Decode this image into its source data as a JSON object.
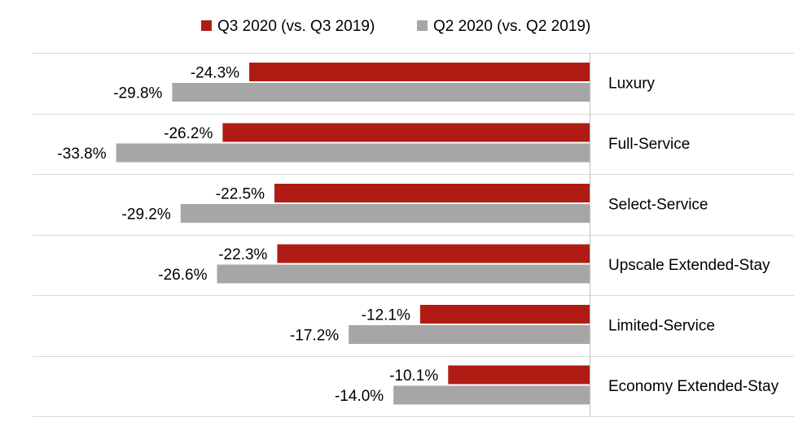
{
  "chart_data": {
    "type": "bar",
    "orientation": "horizontal",
    "categories": [
      "Luxury",
      "Full-Service",
      "Select-Service",
      "Upscale Extended-Stay",
      "Limited-Service",
      "Economy Extended-Stay"
    ],
    "series": [
      {
        "name": "Q3 2020 (vs. Q3 2019)",
        "color": "#b01c14",
        "values": [
          -24.3,
          -26.2,
          -22.5,
          -22.3,
          -12.1,
          -10.1
        ],
        "labels": [
          "-24.3%",
          "-26.2%",
          "-22.5%",
          "-22.3%",
          "-12.1%",
          "-10.1%"
        ]
      },
      {
        "name": "Q2 2020 (vs. Q2 2019)",
        "color": "#a6a6a6",
        "values": [
          -29.8,
          -33.8,
          -29.2,
          -26.6,
          -17.2,
          -14.0
        ],
        "labels": [
          "-29.8%",
          "-33.8%",
          "-29.2%",
          "-26.6%",
          "-17.2%",
          "-14.0%"
        ]
      }
    ],
    "xlim": [
      -40,
      0
    ],
    "legend_position": "top-center",
    "grid": false
  }
}
